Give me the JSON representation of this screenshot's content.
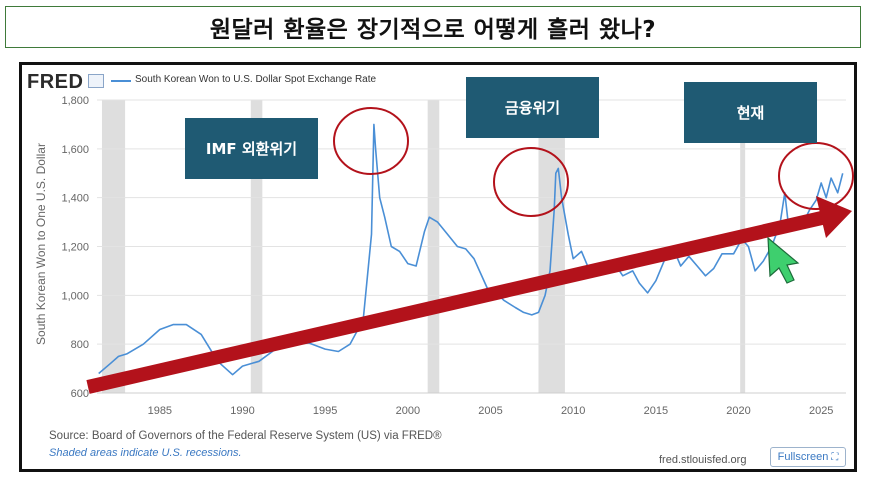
{
  "title": "원달러 환율은 장기적으로 어떻게 흘러 왔나?",
  "fred": {
    "logo": "FRED",
    "legend": "South Korean Won to U.S. Dollar Spot Exchange Rate",
    "source": "Source: Board of Governors of the Federal Reserve System (US) via FRED®",
    "shaded_note": "Shaded areas indicate U.S. recessions.",
    "site": "fred.stlouisfed.org",
    "fullscreen": "Fullscreen"
  },
  "callouts": {
    "imf": "IMF 외환위기",
    "financial": "금융위기",
    "now": "현재"
  },
  "colors": {
    "series": "#4a8fd6",
    "trend_arrow": "#b3121b",
    "callout_bg": "#1f5a73",
    "circle": "#b3121b",
    "recession": "#dedede",
    "cursor": "#3ecf6e"
  },
  "chart_data": {
    "type": "line",
    "title": "",
    "ylabel": "South Korean Won to One U.S. Dollar",
    "xlabel": "",
    "xlim": [
      1981.2,
      2026.5
    ],
    "ylim": [
      600,
      1800
    ],
    "x_ticks": [
      1985,
      1990,
      1995,
      2000,
      2005,
      2010,
      2015,
      2020,
      2025
    ],
    "y_ticks": [
      600,
      800,
      1000,
      1200,
      1400,
      1600,
      1800
    ],
    "y_tick_labels": [
      "600",
      "800",
      "1,000",
      "1,200",
      "1,400",
      "1,600",
      "1,800"
    ],
    "grid": true,
    "recessions": [
      [
        1981.5,
        1982.9
      ],
      [
        1990.5,
        1991.2
      ],
      [
        2001.2,
        2001.9
      ],
      [
        2007.9,
        2009.5
      ],
      [
        2020.1,
        2020.4
      ]
    ],
    "series": [
      {
        "name": "South Korean Won to U.S. Dollar Spot Exchange Rate",
        "x": [
          1981.3,
          1982,
          1982.5,
          1983,
          1984,
          1985,
          1985.8,
          1986.6,
          1987.5,
          1988.5,
          1989.4,
          1990,
          1991,
          1992,
          1993,
          1994,
          1995,
          1995.8,
          1996.5,
          1997.3,
          1997.8,
          1997.95,
          1998.05,
          1998.3,
          1998.6,
          1999,
          1999.5,
          2000,
          2000.5,
          2001,
          2001.3,
          2001.8,
          2002.4,
          2003,
          2003.5,
          2004,
          2004.8,
          2005.2,
          2005.8,
          2006.5,
          2007,
          2007.5,
          2007.9,
          2008.3,
          2008.6,
          2008.85,
          2008.95,
          2009.1,
          2009.3,
          2009.7,
          2010,
          2010.5,
          2011,
          2011.7,
          2012.5,
          2013,
          2013.6,
          2014,
          2014.5,
          2015,
          2015.5,
          2016,
          2016.5,
          2017,
          2017.5,
          2018,
          2018.5,
          2019,
          2019.7,
          2020.2,
          2020.6,
          2021,
          2021.5,
          2022,
          2022.5,
          2022.8,
          2023,
          2023.5,
          2024,
          2024.3,
          2024.7,
          2025,
          2025.3,
          2025.6,
          2026,
          2026.3
        ],
        "y": [
          680,
          720,
          750,
          760,
          800,
          860,
          880,
          880,
          840,
          730,
          675,
          710,
          730,
          780,
          800,
          805,
          780,
          770,
          800,
          900,
          1250,
          1700,
          1600,
          1400,
          1320,
          1200,
          1180,
          1130,
          1120,
          1260,
          1320,
          1300,
          1250,
          1200,
          1190,
          1150,
          1030,
          1020,
          980,
          950,
          930,
          920,
          930,
          1000,
          1100,
          1350,
          1500,
          1520,
          1400,
          1250,
          1150,
          1180,
          1100,
          1130,
          1130,
          1080,
          1100,
          1050,
          1010,
          1060,
          1140,
          1200,
          1120,
          1160,
          1120,
          1080,
          1110,
          1170,
          1170,
          1230,
          1200,
          1100,
          1140,
          1200,
          1290,
          1420,
          1300,
          1300,
          1310,
          1350,
          1390,
          1460,
          1400,
          1480,
          1420,
          1500
        ]
      }
    ]
  }
}
